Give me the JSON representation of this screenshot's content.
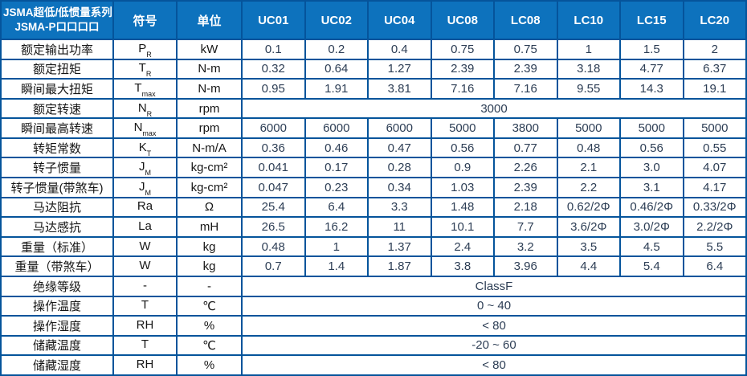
{
  "table": {
    "corner": {
      "line1": "JSMA超低/低惯量系列",
      "line2": "JSMA-P口口口口"
    },
    "columns": {
      "symbol": "符号",
      "unit": "单位",
      "models": [
        "UC01",
        "UC02",
        "UC04",
        "UC08",
        "LC08",
        "LC10",
        "LC15",
        "LC20"
      ]
    },
    "rows": [
      {
        "label": "额定输出功率",
        "sym": "P",
        "sub": "R",
        "unit": "kW",
        "values": [
          "0.1",
          "0.2",
          "0.4",
          "0.75",
          "0.75",
          "1",
          "1.5",
          "2"
        ]
      },
      {
        "label": "额定扭矩",
        "sym": "T",
        "sub": "R",
        "unit": "N-m",
        "values": [
          "0.32",
          "0.64",
          "1.27",
          "2.39",
          "2.39",
          "3.18",
          "4.77",
          "6.37"
        ]
      },
      {
        "label": "瞬间最大扭矩",
        "sym": "T",
        "sub": "max",
        "unit": "N-m",
        "values": [
          "0.95",
          "1.91",
          "3.81",
          "7.16",
          "7.16",
          "9.55",
          "14.3",
          "19.1"
        ]
      },
      {
        "label": "额定转速",
        "sym": "N",
        "sub": "R",
        "unit": "rpm",
        "merged": "3000"
      },
      {
        "label": "瞬间最高转速",
        "sym": "N",
        "sub": "max",
        "unit": "rpm",
        "values": [
          "6000",
          "6000",
          "6000",
          "5000",
          "3800",
          "5000",
          "5000",
          "5000"
        ]
      },
      {
        "label": "转矩常数",
        "sym": "K",
        "sub": "T",
        "unit": "N-m/A",
        "values": [
          "0.36",
          "0.46",
          "0.47",
          "0.56",
          "0.77",
          "0.48",
          "0.56",
          "0.55"
        ]
      },
      {
        "label": "转子惯量",
        "sym": "J",
        "sub": "M",
        "unit": "kg-cm²",
        "values": [
          "0.041",
          "0.17",
          "0.28",
          "0.9",
          "2.26",
          "2.1",
          "3.0",
          "4.07"
        ]
      },
      {
        "label": "转子惯量(带煞车)",
        "sym": "J",
        "sub": "M",
        "unit": "kg-cm²",
        "values": [
          "0.047",
          "0.23",
          "0.34",
          "1.03",
          "2.39",
          "2.2",
          "3.1",
          "4.17"
        ]
      },
      {
        "label": "马达阻抗",
        "sym": "Ra",
        "sub": "",
        "unit": "Ω",
        "values": [
          "25.4",
          "6.4",
          "3.3",
          "1.48",
          "2.18",
          "0.62/2Φ",
          "0.46/2Φ",
          "0.33/2Φ"
        ]
      },
      {
        "label": "马达感抗",
        "sym": "La",
        "sub": "",
        "unit": "mH",
        "values": [
          "26.5",
          "16.2",
          "11",
          "10.1",
          "7.7",
          "3.6/2Φ",
          "3.0/2Φ",
          "2.2/2Φ"
        ]
      },
      {
        "label": "重量（标准）",
        "sym": "W",
        "sub": "",
        "unit": "kg",
        "values": [
          "0.48",
          "1",
          "1.37",
          "2.4",
          "3.2",
          "3.5",
          "4.5",
          "5.5"
        ]
      },
      {
        "label": "重量（带煞车）",
        "sym": "W",
        "sub": "",
        "unit": "kg",
        "values": [
          "0.7",
          "1.4",
          "1.87",
          "3.8",
          "3.96",
          "4.4",
          "5.4",
          "6.4"
        ]
      },
      {
        "label": "绝缘等级",
        "sym": "-",
        "sub": "",
        "unit": "-",
        "merged": "ClassF"
      },
      {
        "label": "操作温度",
        "sym": "T",
        "sub": "",
        "unit": "℃",
        "merged": "0 ~ 40"
      },
      {
        "label": "操作湿度",
        "sym": "RH",
        "sub": "",
        "unit": "%",
        "merged": "< 80"
      },
      {
        "label": "储藏温度",
        "sym": "T",
        "sub": "",
        "unit": "℃",
        "merged": "-20 ~ 60"
      },
      {
        "label": "储藏湿度",
        "sym": "RH",
        "sub": "",
        "unit": "%",
        "merged": "< 80"
      }
    ],
    "colors": {
      "header_background": "#0d72bd",
      "header_divider": "#a9c7e8",
      "grid_border": "#05549b",
      "header_text": "#ffffff",
      "label_text": "#161616",
      "value_text": "#2d3e55"
    }
  }
}
